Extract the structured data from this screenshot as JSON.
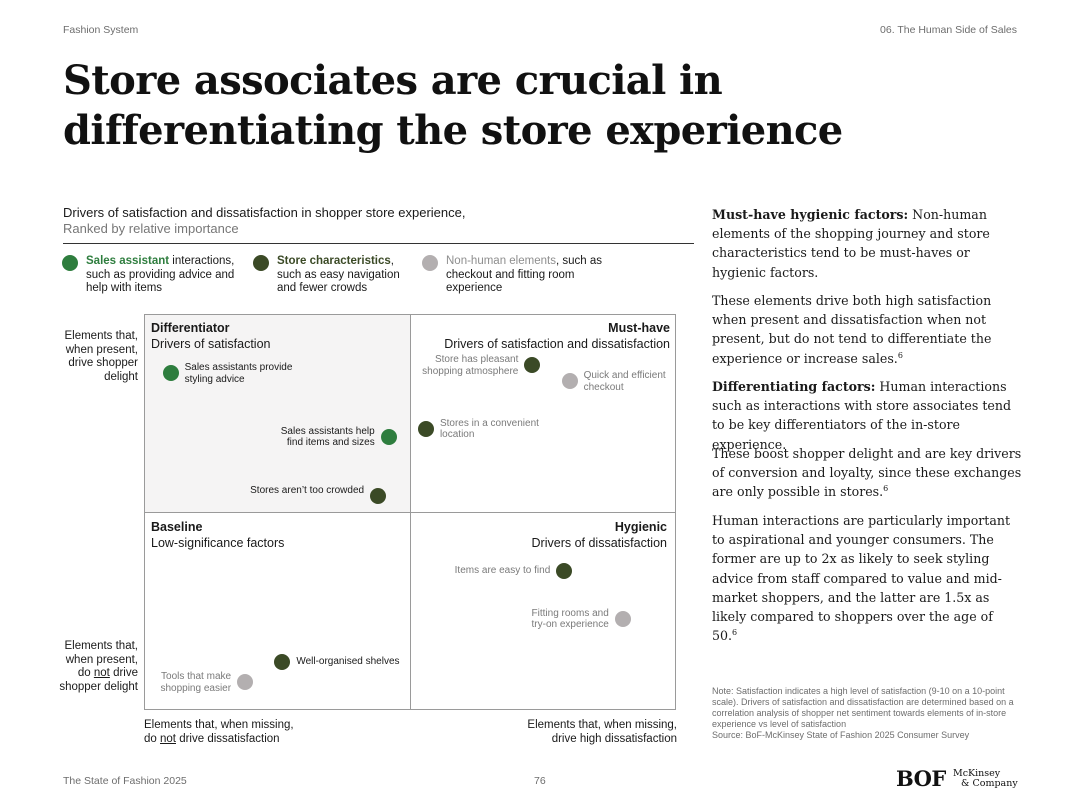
{
  "header": {
    "left": "Fashion System",
    "right": "06. The Human Side of Sales"
  },
  "title": "Store associates are crucial in differentiating the store experience",
  "chart": {
    "subtitle": "Drivers of satisfaction and dissatisfaction in shopper store experience,",
    "subtitle2": "Ranked by relative importance",
    "legend": [
      {
        "strong": "Sales assistant",
        "rest_first": " interactions,",
        "rest": "such as providing advice and help with items",
        "color": "#2e7d3e",
        "strong_color": "#2e7d3e"
      },
      {
        "strong": "Store characteristics",
        "rest_first": ",",
        "rest": "such as easy navigation and fewer crowds",
        "color": "#3b4a26",
        "strong_color": "#3b4a26"
      },
      {
        "strong": "Non-human elements",
        "rest_first": ", such",
        "rest": "as checkout and fitting room experience",
        "color": "#b3afb0",
        "strong_color": "#9a9a9a"
      }
    ],
    "quadrants": {
      "differentiator": {
        "name": "Differentiator",
        "desc": "Drivers of satisfaction"
      },
      "must_have": {
        "name": "Must-have",
        "desc": "Drivers of satisfaction and dissatisfaction"
      },
      "baseline": {
        "name": "Baseline",
        "desc": "Low-significance factors"
      },
      "hygienic": {
        "name": "Hygienic",
        "desc": "Drivers of dissatisfaction"
      }
    },
    "y_axis": {
      "top": "Elements that, when present, drive shopper delight",
      "bottom_pre": "Elements that, when present,",
      "bottom_do": "do ",
      "bottom_not": "not",
      "bottom_post": " drive shopper delight"
    },
    "x_axis": {
      "left_line1": "Elements that, when missing,",
      "left_do": "do ",
      "left_not": "not",
      "left_post": " drive dissatisfaction",
      "right_line1": "Elements that, when missing,",
      "right_line2": "drive high dissatisfaction"
    }
  },
  "chart_data": {
    "type": "scatter",
    "title": "Drivers of satisfaction and dissatisfaction in shopper store experience,",
    "subtitle": "Ranked by relative importance",
    "xlabel": "",
    "ylabel": "",
    "series": [
      {
        "name": "Sales assistant",
        "color": "#2e7d3e",
        "points": [
          {
            "label": "Sales assistants provide styling advice",
            "x": 0.05,
            "y": 0.85
          },
          {
            "label": "Sales assistants help find items and sizes",
            "x": 0.46,
            "y": 0.69
          }
        ]
      },
      {
        "name": "Store characteristics",
        "color": "#3b4a26",
        "points": [
          {
            "label": "Store has pleasant shopping atmosphere",
            "x": 0.73,
            "y": 0.87
          },
          {
            "label": "Stores in a convenient location",
            "x": 0.53,
            "y": 0.71
          },
          {
            "label": "Stores aren’t too crowded",
            "x": 0.44,
            "y": 0.54
          },
          {
            "label": "Items are easy to find",
            "x": 0.79,
            "y": 0.35
          },
          {
            "label": "Well-organised shelves",
            "x": 0.26,
            "y": 0.12
          }
        ]
      },
      {
        "name": "Non-human elements",
        "color": "#b3afb0",
        "points": [
          {
            "label": "Quick and efficient checkout",
            "x": 0.8,
            "y": 0.83
          },
          {
            "label": "Fitting rooms and try-on experience",
            "x": 0.9,
            "y": 0.23
          },
          {
            "label": "Tools that make shopping easier",
            "x": 0.19,
            "y": 0.07
          }
        ]
      }
    ],
    "xlim": [
      0,
      1
    ],
    "ylim": [
      0,
      1
    ]
  },
  "sidebar": {
    "p1_strong": "Must-have hygienic factors:",
    "p1_rest": " Non-human elements of the shopping journey and store characteristics tend to be must-haves or hygienic factors.",
    "p2": "These elements drive both high satisfaction when present and dissatisfaction when not present, but do not tend to differentiate the experience or increase sales.",
    "p2_ref": "6",
    "p3_strong": "Differentiating factors:",
    "p3_rest": " Human interactions such as interactions with store associates tend to be key differentiators of the in-store experience.",
    "p4": "These boost shopper delight and are key drivers of conversion and loyalty, since these exchanges are only possible in stores.",
    "p4_ref": "6",
    "p5": "Human interactions are particularly important to aspirational and younger consumers. The former are up to 2x as likely to seek styling advice from staff compared to value and mid-market shoppers, and the latter are 1.5x as likely compared to shoppers over the age of 50.",
    "p5_ref": "6"
  },
  "note": {
    "text": "Note: Satisfaction indicates a high level of satisfaction (9-10 on a 10-point scale). Drivers of satisfaction and dissatisfaction are determined based on a correlation analysis of shopper net sentiment towards elements of in-store experience vs level of satisfaction",
    "source": "Source: BoF-McKinsey State of Fashion 2025 Consumer Survey"
  },
  "footer": {
    "left": "The State of Fashion 2025",
    "page": "76",
    "logo_bof": "BOF",
    "logo_mck_line1": "McKinsey",
    "logo_mck_line2": "& Company"
  }
}
